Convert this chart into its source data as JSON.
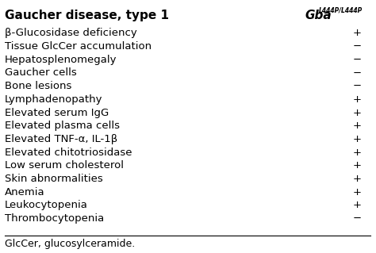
{
  "title_left": "Gaucher disease, type 1",
  "title_right_main": "Gba",
  "title_right_super": "L444P/L444P",
  "row_labels": [
    "β-Glucosidase deficiency",
    "Tissue GlcCer accumulation",
    "Hepatosplenomegaly",
    "Gaucher cells",
    "Bone lesions",
    "Lymphadenopathy",
    "Elevated serum IgG",
    "Elevated plasma cells",
    "Elevated TNF-α, IL-1β",
    "Elevated chitotriosidase",
    "Low serum cholesterol",
    "Skin abnormalities",
    "Anemia",
    "Leukocytopenia",
    "Thrombocytopenia"
  ],
  "row_values": [
    "+",
    "−",
    "−",
    "−",
    "−",
    "+",
    "+",
    "+",
    "+",
    "+",
    "+",
    "+",
    "+",
    "+",
    "−"
  ],
  "footnote": "GlcCer, glucosylceramide.",
  "bg_color": "#ffffff",
  "text_color": "#000000",
  "font_size": 9.5,
  "title_font_size": 11
}
